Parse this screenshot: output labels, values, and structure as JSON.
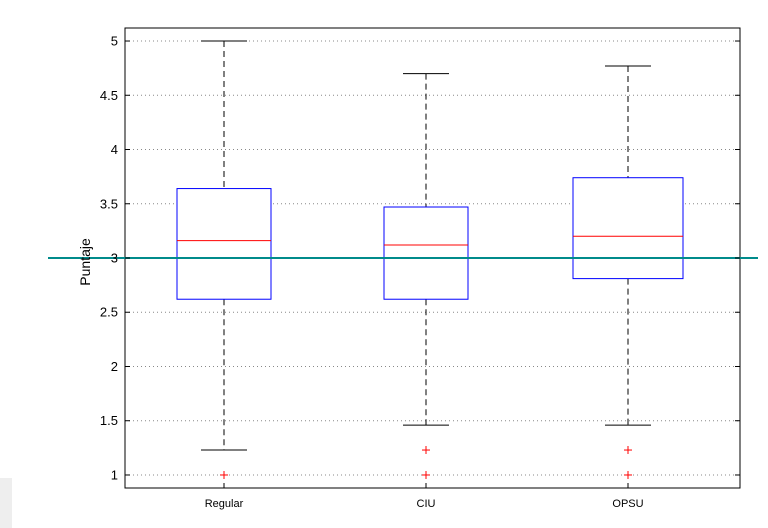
{
  "chart_data": {
    "type": "box",
    "ylabel": "Puntaje",
    "xlabel": "",
    "title": "",
    "categories": [
      "Regular",
      "CIU",
      "OPSU"
    ],
    "boxes": [
      {
        "category": "Regular",
        "whisker_low": 1.23,
        "q1": 2.62,
        "median": 3.16,
        "q3": 3.64,
        "whisker_high": 5.0,
        "outliers": [
          1.0
        ]
      },
      {
        "category": "CIU",
        "whisker_low": 1.46,
        "q1": 2.62,
        "median": 3.12,
        "q3": 3.47,
        "whisker_high": 4.7,
        "outliers": [
          1.23,
          1.0
        ]
      },
      {
        "category": "OPSU",
        "whisker_low": 1.46,
        "q1": 2.81,
        "median": 3.2,
        "q3": 3.74,
        "whisker_high": 4.77,
        "outliers": [
          1.23,
          1.0
        ]
      }
    ],
    "reference_line": {
      "y": 3.0,
      "color": "#008b8b"
    },
    "ylim": [
      0.88,
      5.12
    ],
    "yticks": [
      1,
      1.5,
      2,
      2.5,
      3,
      3.5,
      4,
      4.5,
      5
    ],
    "ytick_labels": [
      "1",
      "1.5",
      "2",
      "2.5",
      "3",
      "3.5",
      "4",
      "4.5",
      "5"
    ],
    "grid": "y-dotted",
    "legend": "none",
    "colors": {
      "box": "#0000ff",
      "median": "#ff0000",
      "whisker": "#000000",
      "outlier": "#ff0000",
      "grid": "#888888"
    }
  }
}
